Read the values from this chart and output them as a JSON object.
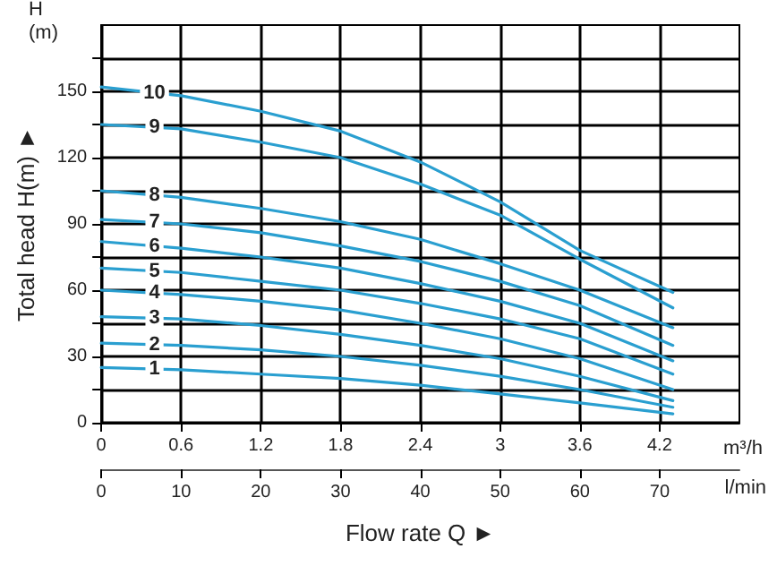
{
  "chart_data": {
    "type": "line",
    "ylabel": "Total head H(m) ►",
    "xlabel": "Flow rate Q ►",
    "x2label": "l/min",
    "annotations": [
      "H\n(m)",
      "m³/h"
    ],
    "x": [
      0,
      0.6,
      1.2,
      1.8,
      2.4,
      3.0,
      3.6,
      4.3
    ],
    "series": [
      {
        "name": "1",
        "color": "#2a9fd0",
        "values": [
          25,
          24,
          22,
          20,
          17,
          13,
          9,
          4
        ]
      },
      {
        "name": "2",
        "color": "#2a9fd0",
        "values": [
          36,
          35,
          33,
          30,
          26,
          21,
          15,
          7
        ]
      },
      {
        "name": "3",
        "color": "#2a9fd0",
        "values": [
          48,
          47,
          44,
          40,
          35,
          29,
          21,
          10
        ]
      },
      {
        "name": "4",
        "color": "#2a9fd0",
        "values": [
          60,
          58,
          55,
          51,
          45,
          38,
          29,
          15
        ]
      },
      {
        "name": "5",
        "color": "#2a9fd0",
        "values": [
          70,
          68,
          64,
          60,
          54,
          47,
          38,
          22
        ]
      },
      {
        "name": "6",
        "color": "#2a9fd0",
        "values": [
          82,
          79,
          75,
          70,
          63,
          55,
          45,
          28
        ]
      },
      {
        "name": "7",
        "color": "#2a9fd0",
        "values": [
          92,
          90,
          86,
          80,
          73,
          64,
          53,
          35
        ]
      },
      {
        "name": "8",
        "color": "#2a9fd0",
        "values": [
          105,
          102,
          97,
          91,
          83,
          72,
          60,
          43
        ]
      },
      {
        "name": "9",
        "color": "#2a9fd0",
        "values": [
          135,
          133,
          127,
          120,
          108,
          94,
          74,
          52
        ]
      },
      {
        "name": "10",
        "color": "#2a9fd0",
        "values": [
          152,
          148,
          141,
          132,
          118,
          100,
          78,
          59
        ]
      }
    ],
    "xlim": [
      0,
      4.8
    ],
    "xticks": [
      0,
      0.6,
      1.2,
      1.8,
      2.4,
      3.0,
      3.6,
      4.2
    ],
    "x2lim": [
      0,
      80
    ],
    "x2ticks": [
      0,
      10,
      20,
      30,
      40,
      50,
      60,
      70
    ],
    "ylim": [
      0,
      180
    ],
    "yticks": [
      0,
      {
        "value": 15,
        "label": null
      },
      30,
      {
        "value": 45,
        "label": null
      },
      60,
      {
        "value": 75,
        "label": null
      },
      90,
      {
        "value": 105,
        "label": null
      },
      120,
      {
        "value": 135,
        "label": null
      },
      150,
      {
        "value": 165,
        "label": null
      }
    ],
    "grid": true,
    "legend": false,
    "marker": "none",
    "line_style": "solid"
  }
}
